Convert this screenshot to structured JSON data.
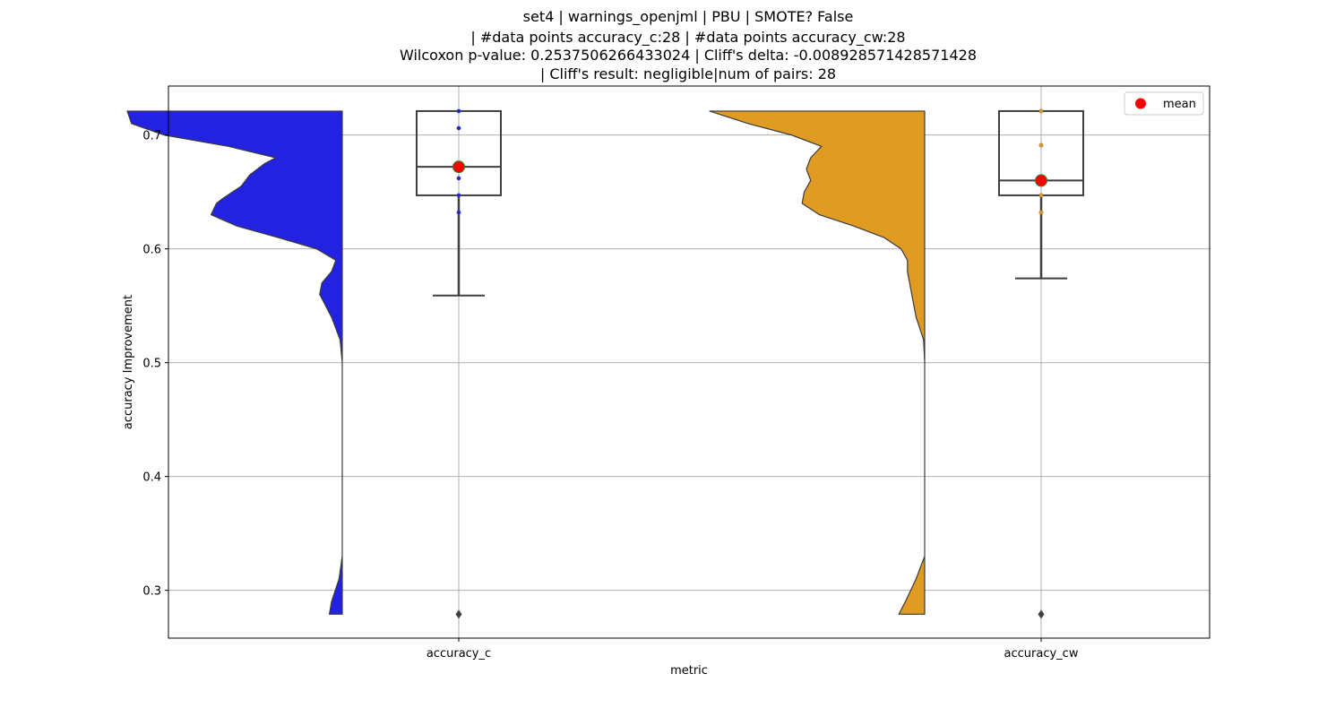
{
  "chart_data": {
    "type": "violin-box",
    "title_lines": [
      "set4 | warnings_openjml | PBU | SMOTE? False",
      "| #data points accuracy_c:28 | #data points accuracy_cw:28",
      "Wilcoxon p-value: 0.2537506266433024 | Cliff's delta: -0.008928571428571428",
      "| Cliff's result: negligible|num of pairs: 28"
    ],
    "xlabel": "metric",
    "ylabel": "accuracy Improvement",
    "categories": [
      "accuracy_c",
      "accuracy_cw"
    ],
    "ylim": [
      0.258,
      0.743
    ],
    "yticks": [
      0.3,
      0.4,
      0.5,
      0.6,
      0.7
    ],
    "ytick_labels": [
      "0.3",
      "0.4",
      "0.5",
      "0.6",
      "0.7"
    ],
    "grid": true,
    "legend": {
      "position": "top-right",
      "entries": [
        {
          "label": "mean",
          "color": "#ff0000"
        }
      ]
    },
    "series": [
      {
        "name": "accuracy_c",
        "color": "#2222e0",
        "n": 28,
        "box": {
          "q1": 0.647,
          "median": 0.672,
          "q3": 0.721,
          "whisker_low": 0.559,
          "whisker_high": 0.721
        },
        "mean": 0.672,
        "outliers": [
          0.279
        ],
        "points": [
          0.721,
          0.706,
          0.675,
          0.672,
          0.662,
          0.647,
          0.632
        ],
        "violin": {
          "y": [
            0.279,
            0.29,
            0.31,
            0.33,
            0.35,
            0.4,
            0.45,
            0.5,
            0.52,
            0.54,
            0.56,
            0.57,
            0.58,
            0.59,
            0.6,
            0.61,
            0.62,
            0.63,
            0.64,
            0.645,
            0.655,
            0.665,
            0.675,
            0.68,
            0.69,
            0.7,
            0.71,
            0.721
          ],
          "density": [
            0.06,
            0.05,
            0.015,
            0.0,
            0.0,
            0.0,
            0.0,
            0.0,
            0.01,
            0.05,
            0.105,
            0.095,
            0.05,
            0.03,
            0.12,
            0.3,
            0.49,
            0.61,
            0.585,
            0.55,
            0.47,
            0.43,
            0.36,
            0.31,
            0.53,
            0.83,
            0.98,
            1.0
          ]
        }
      },
      {
        "name": "accuracy_cw",
        "color": "#e09c22",
        "n": 28,
        "box": {
          "q1": 0.647,
          "median": 0.66,
          "q3": 0.721,
          "whisker_low": 0.574,
          "whisker_high": 0.721
        },
        "mean": 0.66,
        "outliers": [
          0.279
        ],
        "points": [
          0.721,
          0.691,
          0.662,
          0.647,
          0.632
        ],
        "violin": {
          "y": [
            0.279,
            0.29,
            0.31,
            0.33,
            0.34,
            0.4,
            0.5,
            0.52,
            0.54,
            0.56,
            0.57,
            0.58,
            0.59,
            0.6,
            0.61,
            0.62,
            0.63,
            0.64,
            0.65,
            0.66,
            0.67,
            0.68,
            0.69,
            0.7,
            0.71,
            0.721
          ],
          "density": [
            0.12,
            0.09,
            0.04,
            0.0,
            0.0,
            0.0,
            0.0,
            0.005,
            0.04,
            0.06,
            0.07,
            0.08,
            0.08,
            0.11,
            0.19,
            0.33,
            0.49,
            0.57,
            0.56,
            0.53,
            0.55,
            0.53,
            0.48,
            0.62,
            0.82,
            1.0
          ]
        }
      }
    ]
  }
}
